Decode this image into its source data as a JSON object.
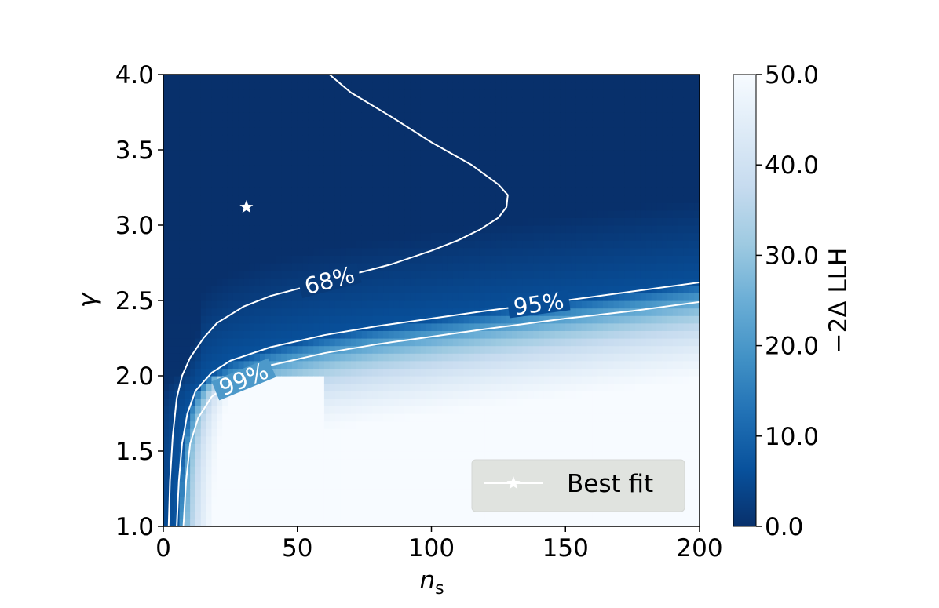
{
  "chart_data": {
    "type": "heatmap",
    "title": "",
    "xlabel": "n",
    "xlabel_subscript": "s",
    "ylabel": "γ",
    "xlim": [
      0,
      200
    ],
    "ylim": [
      1.0,
      4.0
    ],
    "x_ticks": [
      "0",
      "50",
      "100",
      "150",
      "200"
    ],
    "y_ticks": [
      "1.0",
      "1.5",
      "2.0",
      "2.5",
      "3.0",
      "3.5",
      "4.0"
    ],
    "colorbar": {
      "label": "−2Δ LLH",
      "range": [
        0,
        50
      ],
      "ticks": [
        "0.0",
        "10.0",
        "20.0",
        "30.0",
        "40.0",
        "50.0"
      ],
      "colormap": "Blues_r"
    },
    "best_fit": {
      "n_s": 31,
      "gamma": 3.12
    },
    "legend": {
      "entries": [
        "Best fit"
      ],
      "placement": "lower-right"
    },
    "contours": [
      {
        "level": "68%",
        "points": [
          [
            2,
            1.0
          ],
          [
            2.5,
            1.3
          ],
          [
            3.5,
            1.6
          ],
          [
            5,
            1.85
          ],
          [
            7,
            2.0
          ],
          [
            10,
            2.12
          ],
          [
            15,
            2.25
          ],
          [
            20,
            2.35
          ],
          [
            30,
            2.46
          ],
          [
            40,
            2.53
          ],
          [
            55,
            2.6
          ],
          [
            70,
            2.67
          ],
          [
            85,
            2.74
          ],
          [
            100,
            2.83
          ],
          [
            110,
            2.9
          ],
          [
            118,
            2.97
          ],
          [
            125,
            3.05
          ],
          [
            128,
            3.12
          ],
          [
            128.5,
            3.2
          ],
          [
            125,
            3.27
          ],
          [
            115,
            3.4
          ],
          [
            100,
            3.55
          ],
          [
            85,
            3.72
          ],
          [
            70,
            3.88
          ],
          [
            62,
            4.0
          ]
        ]
      },
      {
        "level": "95%",
        "points": [
          [
            5,
            1.0
          ],
          [
            5.8,
            1.3
          ],
          [
            7,
            1.55
          ],
          [
            9,
            1.75
          ],
          [
            12,
            1.9
          ],
          [
            18,
            2.02
          ],
          [
            25,
            2.1
          ],
          [
            40,
            2.19
          ],
          [
            60,
            2.27
          ],
          [
            80,
            2.33
          ],
          [
            100,
            2.38
          ],
          [
            120,
            2.43
          ],
          [
            150,
            2.5
          ],
          [
            175,
            2.56
          ],
          [
            200,
            2.62
          ]
        ]
      },
      {
        "level": "99%",
        "points": [
          [
            7.5,
            1.0
          ],
          [
            8.5,
            1.3
          ],
          [
            10,
            1.55
          ],
          [
            13,
            1.72
          ],
          [
            18,
            1.86
          ],
          [
            25,
            1.96
          ],
          [
            40,
            2.07
          ],
          [
            60,
            2.15
          ],
          [
            80,
            2.21
          ],
          [
            100,
            2.26
          ],
          [
            120,
            2.31
          ],
          [
            150,
            2.38
          ],
          [
            175,
            2.43
          ],
          [
            200,
            2.49
          ]
        ]
      }
    ]
  }
}
